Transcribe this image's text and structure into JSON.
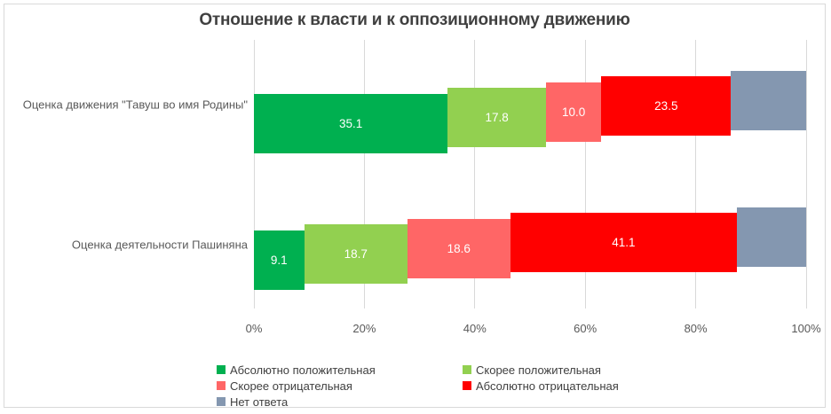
{
  "title": "Отношение к власти и к оппозиционному движению",
  "chart_data": {
    "type": "bar",
    "stacked": true,
    "orientation": "horizontal",
    "title": "Отношение к власти и к оппозиционному движению",
    "categories": [
      "Оценка движения \"Тавуш во имя Родины\"",
      "Оценка деятельности Пашиняна"
    ],
    "series": [
      {
        "name": "Абсолютно положительная",
        "color": "#00B050",
        "values": [
          35.1,
          9.1
        ],
        "labels": [
          "35.1",
          "9.1"
        ],
        "label_visible": true
      },
      {
        "name": "Скорее положительная",
        "color": "#92D050",
        "values": [
          17.8,
          18.7
        ],
        "labels": [
          "17.8",
          "18.7"
        ],
        "label_visible": true
      },
      {
        "name": "Скорее отрицательная",
        "color": "#FF6666",
        "values": [
          10.0,
          18.6
        ],
        "labels": [
          "10.0",
          "18.6"
        ],
        "label_visible": true
      },
      {
        "name": "Абсолютно отрицательная",
        "color": "#FF0000",
        "values": [
          23.5,
          41.1
        ],
        "labels": [
          "23.5",
          "41.1"
        ],
        "label_visible": true
      },
      {
        "name": "Нет ответа",
        "color": "#8497B0",
        "values": [
          13.6,
          12.5
        ],
        "labels": [
          "",
          ""
        ],
        "label_visible": false
      }
    ],
    "x_ticks": [
      "0%",
      "20%",
      "40%",
      "60%",
      "80%",
      "100%"
    ],
    "xlim": [
      0,
      100
    ],
    "grid": "vertical",
    "legend_position": "bottom",
    "bar_label_color": "#FFFFFF"
  },
  "colors": {
    "background": "#FFFFFF",
    "frame_border": "#D9D9D9",
    "grid": "#D9D9D9",
    "title_text": "#404040",
    "axis_text": "#595959",
    "legend_text": "#404040"
  }
}
